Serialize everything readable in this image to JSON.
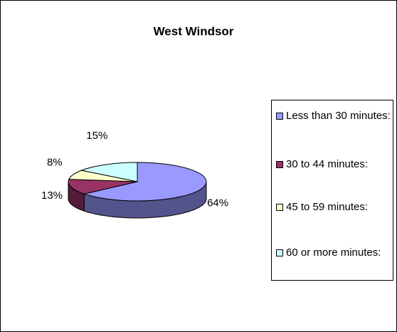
{
  "chart_data": {
    "type": "pie",
    "title": "West Windsor",
    "categories": [
      "Less than 30 minutes:",
      "30 to 44 minutes:",
      "45 to 59 minutes:",
      "60 or more minutes:"
    ],
    "values": [
      64,
      13,
      8,
      15
    ],
    "value_labels": [
      "64%",
      "13%",
      "8%",
      "15%"
    ],
    "colors": [
      "#9999ff",
      "#993366",
      "#ffffcc",
      "#ccffff"
    ],
    "legend": "right"
  }
}
